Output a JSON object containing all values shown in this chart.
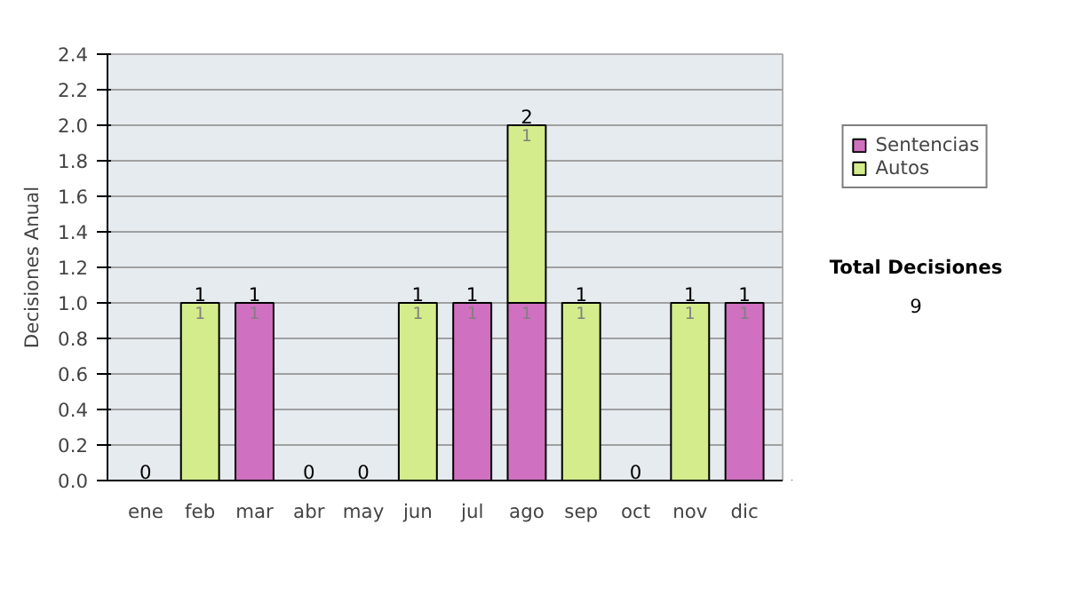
{
  "chart_data": {
    "type": "bar",
    "stacked": true,
    "ylabel": "Decisiones Anual",
    "categories": [
      "ene",
      "feb",
      "mar",
      "abr",
      "may",
      "jun",
      "jul",
      "ago",
      "sep",
      "oct",
      "nov",
      "dic"
    ],
    "series": [
      {
        "name": "Sentencias",
        "color": "#d070c0",
        "values": [
          0,
          0,
          1,
          0,
          0,
          0,
          1,
          1,
          0,
          0,
          0,
          1
        ],
        "value_labels": [
          null,
          null,
          "1",
          null,
          null,
          null,
          "1",
          "1",
          null,
          null,
          null,
          "1"
        ]
      },
      {
        "name": "Autos",
        "color": "#d4ec8c",
        "values": [
          0,
          1,
          0,
          0,
          0,
          1,
          0,
          1,
          1,
          0,
          1,
          0
        ],
        "value_labels": [
          null,
          "1",
          null,
          null,
          null,
          "1",
          null,
          "1",
          "1",
          null,
          "1",
          null
        ]
      }
    ],
    "totals": [
      "0",
      "1",
      "1",
      "0",
      "0",
      "1",
      "1",
      "2",
      "1",
      "0",
      "1",
      "1"
    ],
    "ylim": [
      0,
      2.4
    ],
    "yticks": [
      {
        "value": 0,
        "label": "0.0"
      },
      {
        "value": 0.2,
        "label": "0.2"
      },
      {
        "value": 0.4,
        "label": "0.4"
      },
      {
        "value": 0.6,
        "label": "0.6"
      },
      {
        "value": 0.8,
        "label": "0.8"
      },
      {
        "value": 1,
        "label": "1.0"
      },
      {
        "value": 1.2,
        "label": "1.2"
      },
      {
        "value": 1.4,
        "label": "1.4"
      },
      {
        "value": 1.6,
        "label": "1.6"
      },
      {
        "value": 1.8,
        "label": "1.8"
      },
      {
        "value": 2,
        "label": "2.0"
      },
      {
        "value": 2.2,
        "label": "2.2"
      },
      {
        "value": 2.4,
        "label": "2.4"
      }
    ],
    "grid": "y",
    "legend": "right",
    "annotations": [
      "Total Decisiones",
      "9"
    ]
  }
}
